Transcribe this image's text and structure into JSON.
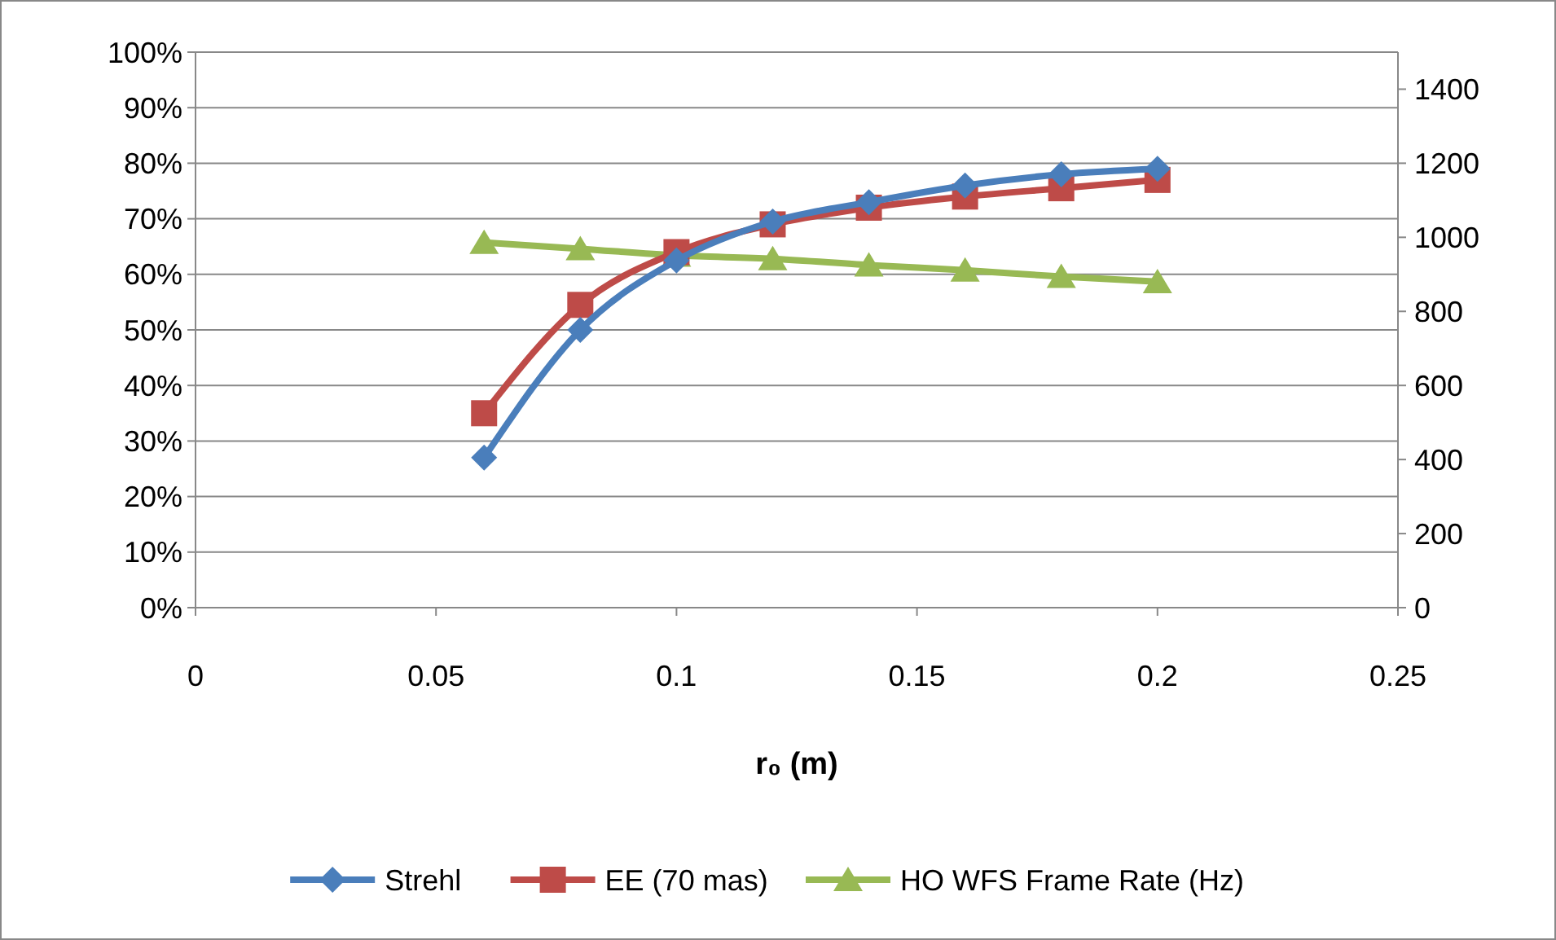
{
  "chart_data": {
    "type": "line",
    "xlabel": "r₀ (m)",
    "x": [
      0.06,
      0.08,
      0.1,
      0.12,
      0.14,
      0.16,
      0.18,
      0.2
    ],
    "xlim": [
      0,
      0.25
    ],
    "xticks": [
      0,
      0.05,
      0.1,
      0.15,
      0.2,
      0.25
    ],
    "ylim": [
      0,
      1
    ],
    "yticks": [
      {
        "value": 0,
        "label": "0%"
      },
      {
        "value": 0.1,
        "label": "10%"
      },
      {
        "value": 0.2,
        "label": "20%"
      },
      {
        "value": 0.3,
        "label": "30%"
      },
      {
        "value": 0.4,
        "label": "40%"
      },
      {
        "value": 0.5,
        "label": "50%"
      },
      {
        "value": 0.6,
        "label": "60%"
      },
      {
        "value": 0.7,
        "label": "70%"
      },
      {
        "value": 0.8,
        "label": "80%"
      },
      {
        "value": 0.9,
        "label": "90%"
      },
      {
        "value": 1,
        "label": "100%"
      }
    ],
    "y2lim": [
      0,
      1500
    ],
    "y2ticks": [
      0,
      200,
      400,
      600,
      800,
      1000,
      1200,
      1400
    ],
    "grid": "y",
    "legend": "bottom",
    "series": [
      {
        "name": "Strehl",
        "color": "#4a7ebb",
        "marker": "diamond",
        "values": [
          0.27,
          0.5,
          0.625,
          0.695,
          0.73,
          0.76,
          0.78,
          0.79
        ]
      },
      {
        "name": "EE (70 mas)",
        "color": "#be4b48",
        "marker": "square",
        "values": [
          0.35,
          0.545,
          0.64,
          0.69,
          0.72,
          0.74,
          0.755,
          0.77
        ]
      },
      {
        "name": "HO WFS Frame Rate (Hz)",
        "color": "#98b954",
        "marker": "triangle",
        "axis": "y2",
        "values": [
          986,
          969,
          951,
          942,
          925,
          911,
          894,
          880
        ]
      }
    ]
  }
}
